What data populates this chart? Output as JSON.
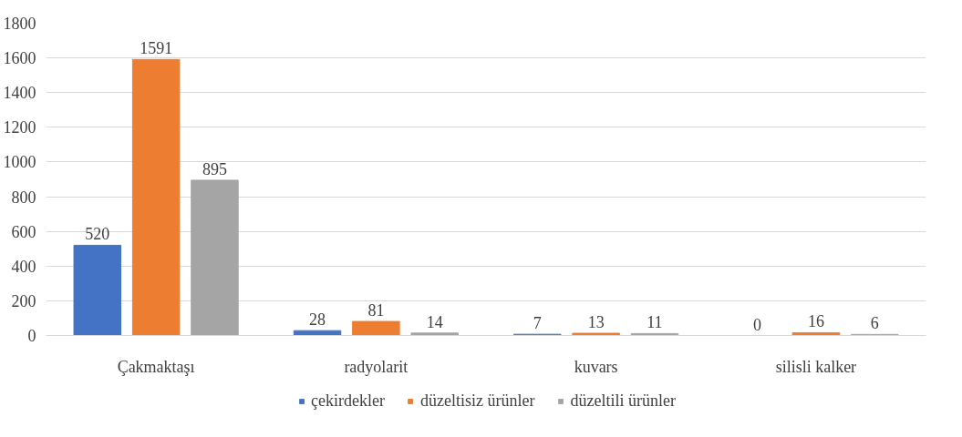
{
  "chart_data": {
    "type": "bar",
    "categories": [
      "Çakmaktaşı",
      "radyolarit",
      "kuvars",
      "silisli kalker"
    ],
    "series": [
      {
        "name": "çekirdekler",
        "color": "#4472c4",
        "values": [
          520,
          28,
          7,
          0
        ]
      },
      {
        "name": "düzeltisiz ürünler",
        "color": "#ed7d31",
        "values": [
          1591,
          81,
          13,
          16
        ]
      },
      {
        "name": "düzeltili ürünler",
        "color": "#a5a5a5",
        "values": [
          895,
          14,
          11,
          6
        ]
      }
    ],
    "ylim": [
      0,
      1800
    ],
    "yticks": [
      0,
      200,
      400,
      600,
      800,
      1000,
      1200,
      1400,
      1600,
      1800
    ],
    "grid": "y",
    "legend": "bottom",
    "data_labels": true
  }
}
